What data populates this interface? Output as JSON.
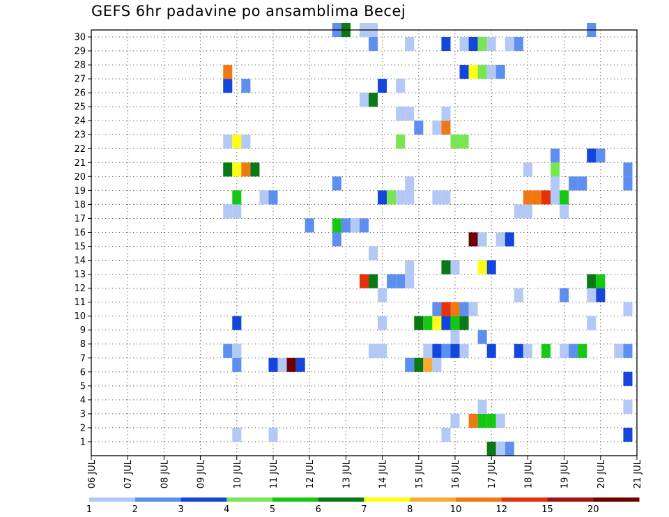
{
  "chart_data": {
    "type": "heatmap",
    "title": "GEFS 6hr padavine po ansamblima Becej",
    "xlabel": "",
    "ylabel": "",
    "x_start": "06 JUL",
    "x_end": "21 JUL",
    "x_step_hours": 6,
    "x_tick_labels": [
      "06 JUL",
      "07 JUL",
      "08 JUL",
      "09 JUL",
      "10 JUL",
      "11 JUL",
      "12 JUL",
      "13 JUL",
      "14 JUL",
      "15 JUL",
      "16 JUL",
      "17 JUL",
      "18 JUL",
      "19 JUL",
      "20 JUL",
      "21 JUL"
    ],
    "y_tick_labels": [
      1,
      2,
      3,
      4,
      5,
      6,
      7,
      8,
      9,
      10,
      11,
      12,
      13,
      14,
      15,
      16,
      17,
      18,
      19,
      20,
      21,
      22,
      23,
      24,
      25,
      26,
      27,
      28,
      29,
      30
    ],
    "ylim": [
      0,
      30
    ],
    "grid": true,
    "legend_position": "bottom",
    "legend_labels": [
      "1",
      "2",
      "3",
      "4",
      "5",
      "6",
      "7",
      "8",
      "10",
      "12",
      "15",
      "20"
    ],
    "legend_colors": [
      "#b4c8f5",
      "#5c8ff0",
      "#1446dc",
      "#78e650",
      "#14c814",
      "#0a7814",
      "#ffff14",
      "#faaa32",
      "#f07814",
      "#e6320a",
      "#a01414",
      "#6e0000"
    ],
    "cells": [
      {
        "x": "15 JUL 18Z",
        "y": 1,
        "level": 0
      },
      {
        "x": "10 JUL 00Z",
        "y": 1,
        "level": 0
      },
      {
        "x": "11 JUL 00Z",
        "y": 1,
        "level": 0
      },
      {
        "x": "20 JUL 18Z",
        "y": 1,
        "level": 2
      },
      {
        "x": "16 JUL 00Z",
        "y": 2,
        "level": 0
      },
      {
        "x": "16 JUL 12Z",
        "y": 2,
        "level": 8
      },
      {
        "x": "16 JUL 18Z",
        "y": 2,
        "level": 4
      },
      {
        "x": "17 JUL 00Z",
        "y": 2,
        "level": 4
      },
      {
        "x": "17 JUL 06Z",
        "y": 2,
        "level": 0
      },
      {
        "x": "16 JUL 18Z",
        "y": 3,
        "level": 0
      },
      {
        "x": "20 JUL 18Z",
        "y": 3,
        "level": 0
      },
      {
        "x": "20 JUL 18Z",
        "y": 5,
        "level": 2
      },
      {
        "x": "10 JUL 00Z",
        "y": 6,
        "level": 1
      },
      {
        "x": "11 JUL 00Z",
        "y": 6,
        "level": 2
      },
      {
        "x": "11 JUL 06Z",
        "y": 6,
        "level": 0
      },
      {
        "x": "11 JUL 12Z",
        "y": 6,
        "level": 11
      },
      {
        "x": "11 JUL 18Z",
        "y": 6,
        "level": 2
      },
      {
        "x": "14 JUL 18Z",
        "y": 6,
        "level": 1
      },
      {
        "x": "15 JUL 00Z",
        "y": 6,
        "level": 5
      },
      {
        "x": "15 JUL 06Z",
        "y": 6,
        "level": 7
      },
      {
        "x": "15 JUL 12Z",
        "y": 6,
        "level": 0
      },
      {
        "x": "09 JUL 18Z",
        "y": 7,
        "level": 1
      },
      {
        "x": "10 JUL 00Z",
        "y": 7,
        "level": 0
      },
      {
        "x": "13 JUL 18Z",
        "y": 7,
        "level": 0
      },
      {
        "x": "14 JUL 00Z",
        "y": 7,
        "level": 0
      },
      {
        "x": "15 JUL 06Z",
        "y": 7,
        "level": 0
      },
      {
        "x": "15 JUL 12Z",
        "y": 7,
        "level": 2
      },
      {
        "x": "15 JUL 18Z",
        "y": 7,
        "level": 1
      },
      {
        "x": "16 JUL 00Z",
        "y": 7,
        "level": 2
      },
      {
        "x": "16 JUL 06Z",
        "y": 7,
        "level": 0
      },
      {
        "x": "17 JUL 00Z",
        "y": 7,
        "level": 2
      },
      {
        "x": "17 JUL 18Z",
        "y": 7,
        "level": 2
      },
      {
        "x": "18 JUL 00Z",
        "y": 7,
        "level": 0
      },
      {
        "x": "18 JUL 12Z",
        "y": 7,
        "level": 4
      },
      {
        "x": "19 JUL 00Z",
        "y": 7,
        "level": 0
      },
      {
        "x": "19 JUL 06Z",
        "y": 7,
        "level": 1
      },
      {
        "x": "19 JUL 12Z",
        "y": 7,
        "level": 4
      },
      {
        "x": "20 JUL 12Z",
        "y": 7,
        "level": 0
      },
      {
        "x": "20 JUL 18Z",
        "y": 7,
        "level": 1
      },
      {
        "x": "16 JUL 00Z",
        "y": 8,
        "level": 0
      },
      {
        "x": "16 JUL 18Z",
        "y": 8,
        "level": 1
      },
      {
        "x": "10 JUL 00Z",
        "y": 9,
        "level": 2
      },
      {
        "x": "14 JUL 00Z",
        "y": 9,
        "level": 0
      },
      {
        "x": "15 JUL 00Z",
        "y": 9,
        "level": 5
      },
      {
        "x": "15 JUL 06Z",
        "y": 9,
        "level": 4
      },
      {
        "x": "15 JUL 12Z",
        "y": 9,
        "level": 6
      },
      {
        "x": "15 JUL 18Z",
        "y": 9,
        "level": 2
      },
      {
        "x": "16 JUL 00Z",
        "y": 9,
        "level": 4
      },
      {
        "x": "16 JUL 06Z",
        "y": 9,
        "level": 5
      },
      {
        "x": "19 JUL 18Z",
        "y": 9,
        "level": 0
      },
      {
        "x": "15 JUL 12Z",
        "y": 10,
        "level": 1
      },
      {
        "x": "15 JUL 18Z",
        "y": 10,
        "level": 9
      },
      {
        "x": "16 JUL 00Z",
        "y": 10,
        "level": 8
      },
      {
        "x": "16 JUL 06Z",
        "y": 10,
        "level": 1
      },
      {
        "x": "16 JUL 12Z",
        "y": 10,
        "level": 0
      },
      {
        "x": "20 JUL 18Z",
        "y": 10,
        "level": 0
      },
      {
        "x": "14 JUL 00Z",
        "y": 11,
        "level": 0
      },
      {
        "x": "17 JUL 18Z",
        "y": 11,
        "level": 0
      },
      {
        "x": "19 JUL 00Z",
        "y": 11,
        "level": 1
      },
      {
        "x": "19 JUL 18Z",
        "y": 11,
        "level": 0
      },
      {
        "x": "20 JUL 00Z",
        "y": 11,
        "level": 2
      },
      {
        "x": "13 JUL 12Z",
        "y": 12,
        "level": 9
      },
      {
        "x": "13 JUL 18Z",
        "y": 12,
        "level": 5
      },
      {
        "x": "14 JUL 06Z",
        "y": 12,
        "level": 1
      },
      {
        "x": "14 JUL 12Z",
        "y": 12,
        "level": 1
      },
      {
        "x": "14 JUL 18Z",
        "y": 12,
        "level": 0
      },
      {
        "x": "19 JUL 18Z",
        "y": 12,
        "level": 5
      },
      {
        "x": "20 JUL 00Z",
        "y": 12,
        "level": 4
      },
      {
        "x": "14 JUL 18Z",
        "y": 13,
        "level": 0
      },
      {
        "x": "15 JUL 18Z",
        "y": 13,
        "level": 5
      },
      {
        "x": "16 JUL 00Z",
        "y": 13,
        "level": 0
      },
      {
        "x": "16 JUL 18Z",
        "y": 13,
        "level": 6
      },
      {
        "x": "17 JUL 00Z",
        "y": 13,
        "level": 2
      },
      {
        "x": "13 JUL 18Z",
        "y": 14,
        "level": 0
      },
      {
        "x": "12 JUL 18Z",
        "y": 15,
        "level": 1
      },
      {
        "x": "16 JUL 12Z",
        "y": 15,
        "level": 11
      },
      {
        "x": "16 JUL 18Z",
        "y": 15,
        "level": 0
      },
      {
        "x": "17 JUL 06Z",
        "y": 15,
        "level": 0
      },
      {
        "x": "17 JUL 12Z",
        "y": 15,
        "level": 2
      },
      {
        "x": "12 JUL 00Z",
        "y": 16,
        "level": 1
      },
      {
        "x": "12 JUL 18Z",
        "y": 16,
        "level": 4
      },
      {
        "x": "13 JUL 00Z",
        "y": 16,
        "level": 1
      },
      {
        "x": "13 JUL 06Z",
        "y": 16,
        "level": 0
      },
      {
        "x": "13 JUL 12Z",
        "y": 16,
        "level": 1
      },
      {
        "x": "09 JUL 18Z",
        "y": 17,
        "level": 0
      },
      {
        "x": "10 JUL 00Z",
        "y": 17,
        "level": 0
      },
      {
        "x": "17 JUL 18Z",
        "y": 17,
        "level": 0
      },
      {
        "x": "18 JUL 00Z",
        "y": 17,
        "level": 0
      },
      {
        "x": "19 JUL 00Z",
        "y": 17,
        "level": 0
      },
      {
        "x": "10 JUL 00Z",
        "y": 18,
        "level": 4
      },
      {
        "x": "10 JUL 18Z",
        "y": 18,
        "level": 0
      },
      {
        "x": "11 JUL 00Z",
        "y": 18,
        "level": 1
      },
      {
        "x": "14 JUL 00Z",
        "y": 18,
        "level": 2
      },
      {
        "x": "14 JUL 06Z",
        "y": 18,
        "level": 3
      },
      {
        "x": "14 JUL 12Z",
        "y": 18,
        "level": 0
      },
      {
        "x": "14 JUL 18Z",
        "y": 18,
        "level": 0
      },
      {
        "x": "15 JUL 12Z",
        "y": 18,
        "level": 0
      },
      {
        "x": "15 JUL 18Z",
        "y": 18,
        "level": 0
      },
      {
        "x": "18 JUL 00Z",
        "y": 18,
        "level": 8
      },
      {
        "x": "18 JUL 06Z",
        "y": 18,
        "level": 8
      },
      {
        "x": "18 JUL 12Z",
        "y": 18,
        "level": 9
      },
      {
        "x": "18 JUL 18Z",
        "y": 18,
        "level": 0
      },
      {
        "x": "19 JUL 00Z",
        "y": 18,
        "level": 4
      },
      {
        "x": "12 JUL 18Z",
        "y": 19,
        "level": 1
      },
      {
        "x": "14 JUL 18Z",
        "y": 19,
        "level": 0
      },
      {
        "x": "18 JUL 18Z",
        "y": 19,
        "level": 0
      },
      {
        "x": "19 JUL 06Z",
        "y": 19,
        "level": 1
      },
      {
        "x": "19 JUL 12Z",
        "y": 19,
        "level": 1
      },
      {
        "x": "20 JUL 18Z",
        "y": 19,
        "level": 1
      },
      {
        "x": "09 JUL 18Z",
        "y": 20,
        "level": 5
      },
      {
        "x": "10 JUL 00Z",
        "y": 20,
        "level": 6
      },
      {
        "x": "10 JUL 06Z",
        "y": 20,
        "level": 8
      },
      {
        "x": "10 JUL 12Z",
        "y": 20,
        "level": 5
      },
      {
        "x": "18 JUL 00Z",
        "y": 20,
        "level": 0
      },
      {
        "x": "18 JUL 18Z",
        "y": 20,
        "level": 3
      },
      {
        "x": "20 JUL 18Z",
        "y": 20,
        "level": 1
      },
      {
        "x": "18 JUL 18Z",
        "y": 21,
        "level": 1
      },
      {
        "x": "19 JUL 18Z",
        "y": 21,
        "level": 2
      },
      {
        "x": "20 JUL 00Z",
        "y": 21,
        "level": 1
      },
      {
        "x": "09 JUL 18Z",
        "y": 22,
        "level": 0
      },
      {
        "x": "10 JUL 00Z",
        "y": 22,
        "level": 6
      },
      {
        "x": "10 JUL 06Z",
        "y": 22,
        "level": 0
      },
      {
        "x": "14 JUL 12Z",
        "y": 22,
        "level": 3
      },
      {
        "x": "16 JUL 00Z",
        "y": 22,
        "level": 3
      },
      {
        "x": "16 JUL 06Z",
        "y": 22,
        "level": 3
      },
      {
        "x": "15 JUL 00Z",
        "y": 23,
        "level": 1
      },
      {
        "x": "15 JUL 12Z",
        "y": 23,
        "level": 0
      },
      {
        "x": "15 JUL 18Z",
        "y": 23,
        "level": 8
      },
      {
        "x": "14 JUL 12Z",
        "y": 24,
        "level": 0
      },
      {
        "x": "14 JUL 18Z",
        "y": 24,
        "level": 0
      },
      {
        "x": "15 JUL 18Z",
        "y": 24,
        "level": 0
      },
      {
        "x": "13 JUL 12Z",
        "y": 25,
        "level": 0
      },
      {
        "x": "13 JUL 18Z",
        "y": 25,
        "level": 5
      },
      {
        "x": "09 JUL 18Z",
        "y": 26,
        "level": 2
      },
      {
        "x": "10 JUL 06Z",
        "y": 26,
        "level": 1
      },
      {
        "x": "14 JUL 00Z",
        "y": 26,
        "level": 2
      },
      {
        "x": "14 JUL 12Z",
        "y": 26,
        "level": 0
      },
      {
        "x": "09 JUL 18Z",
        "y": 27,
        "level": 8
      },
      {
        "x": "16 JUL 06Z",
        "y": 27,
        "level": 2
      },
      {
        "x": "16 JUL 12Z",
        "y": 27,
        "level": 6
      },
      {
        "x": "16 JUL 18Z",
        "y": 27,
        "level": 3
      },
      {
        "x": "17 JUL 00Z",
        "y": 27,
        "level": 0
      },
      {
        "x": "17 JUL 06Z",
        "y": 27,
        "level": 1
      },
      {
        "x": "13 JUL 18Z",
        "y": 29,
        "level": 1
      },
      {
        "x": "14 JUL 18Z",
        "y": 29,
        "level": 0
      },
      {
        "x": "15 JUL 18Z",
        "y": 29,
        "level": 2
      },
      {
        "x": "16 JUL 06Z",
        "y": 29,
        "level": 0
      },
      {
        "x": "16 JUL 12Z",
        "y": 29,
        "level": 2
      },
      {
        "x": "16 JUL 18Z",
        "y": 29,
        "level": 3
      },
      {
        "x": "17 JUL 00Z",
        "y": 29,
        "level": 0
      },
      {
        "x": "17 JUL 12Z",
        "y": 29,
        "level": 0
      },
      {
        "x": "17 JUL 18Z",
        "y": 29,
        "level": 1
      },
      {
        "x": "12 JUL 18Z",
        "y": 30,
        "level": 1
      },
      {
        "x": "13 JUL 00Z",
        "y": 30,
        "level": 5
      },
      {
        "x": "13 JUL 12Z",
        "y": 30,
        "level": 0
      },
      {
        "x": "13 JUL 18Z",
        "y": 30,
        "level": 0
      },
      {
        "x": "19 JUL 18Z",
        "y": 30,
        "level": 1
      },
      {
        "x": "17 JUL 00Z",
        "y": 0,
        "level": 5
      },
      {
        "x": "17 JUL 06Z",
        "y": 0,
        "level": 0
      },
      {
        "x": "17 JUL 12Z",
        "y": 0,
        "level": 1
      }
    ]
  }
}
